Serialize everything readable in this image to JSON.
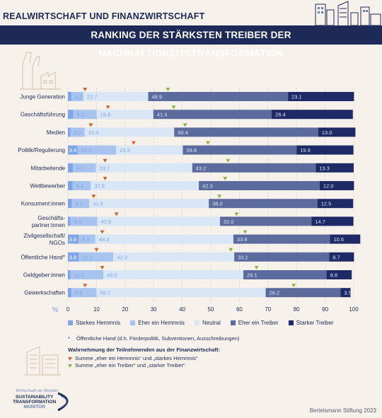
{
  "header": {
    "top_label": "REALWIRTSCHAFT UND FINANZWIRTSCHAFT",
    "title": "RANKING DER STÄRKSTEN TREIBER DER NACHHALTIGKEITSTRANSFORMATION"
  },
  "colors": {
    "navy": "#1d2a57",
    "background": "#f6f1ea",
    "marker_hemmnis": "#d4622a",
    "marker_treiber": "#8bb53c"
  },
  "chart_data": {
    "type": "bar",
    "orientation": "horizontal",
    "stacked": true,
    "x_unit": "%",
    "xlim": [
      0,
      100
    ],
    "x_ticks": [
      0,
      10,
      20,
      30,
      40,
      50,
      60,
      70,
      80,
      90,
      100
    ],
    "categories": [
      "Junge Generation",
      "Geschäftsführung",
      "Medien",
      "Politik/Regulierung",
      "Mitarbeitende",
      "Wettbewerber",
      "Konsument:innen",
      "Geschäfts-\npartner:innen",
      "Zivilgesellschaft/\nNGOs",
      "Öffentliche Hand*",
      "Geldgeber:innen",
      "Gewerkschaften"
    ],
    "series": [
      {
        "name": "Starkes Hemmnis",
        "color": "#7fa6e8",
        "values": [
          1.2,
          1.9,
          0.9,
          3.4,
          1.8,
          1.6,
          1.4,
          0.9,
          3.8,
          3.8,
          0.9,
          1.2
        ]
      },
      {
        "name": "Eher ein Hemmnis",
        "color": "#a8c4ee",
        "values": [
          4.2,
          8.2,
          5.0,
          13.5,
          8.0,
          6.4,
          6.1,
          9.4,
          5.8,
          12.1,
          11.5,
          8.8
        ]
      },
      {
        "name": "Neutral",
        "color": "#d8e6f6",
        "values": [
          22.7,
          19.8,
          31.3,
          23.3,
          33.7,
          37.8,
          41.8,
          42.9,
          48.3,
          42.3,
          49.0,
          59.2
        ]
      },
      {
        "name": "Eher ein Treiber",
        "color": "#5c6b9e",
        "values": [
          48.9,
          41.4,
          50.4,
          39.8,
          43.2,
          42.3,
          38.0,
          32.0,
          33.8,
          33.2,
          29.1,
          26.2
        ]
      },
      {
        "name": "Starker Treiber",
        "color": "#1d2a66",
        "values": [
          23.1,
          28.4,
          13.0,
          19.9,
          13.3,
          12.0,
          12.5,
          14.7,
          10.6,
          8.7,
          8.8,
          3.5
        ]
      }
    ],
    "value_labels": [
      [
        "",
        "4.2",
        "22.7",
        "48.9",
        "23.1"
      ],
      [
        "",
        "8.2",
        "19.8",
        "41.4",
        "28.4"
      ],
      [
        "",
        "5.0",
        "31.3",
        "50.4",
        "13.0"
      ],
      [
        "3.4",
        "13.5",
        "23.3",
        "39.8",
        "19.9"
      ],
      [
        "",
        "8.0",
        "33.7",
        "43.2",
        "13.3"
      ],
      [
        "",
        "6.4",
        "37.8",
        "42.3",
        "12.0"
      ],
      [
        "",
        "6.1",
        "41.8",
        "38.0",
        "12.5"
      ],
      [
        "",
        "9.4",
        "42.9",
        "32.0",
        "14.7"
      ],
      [
        "3.8",
        "5.8",
        "48.3",
        "33.8",
        "10.6"
      ],
      [
        "3.8",
        "12.1",
        "42.3",
        "33.2",
        "8.7"
      ],
      [
        "",
        "11.5",
        "49.0",
        "29.1",
        "8.8"
      ],
      [
        "",
        "8.8",
        "59.2",
        "26.2",
        "3.5"
      ]
    ],
    "markers_hemmnis": [
      6,
      14,
      8,
      23,
      13,
      13,
      9,
      17,
      12,
      10,
      12,
      6
    ],
    "markers_treiber": [
      35,
      37,
      41,
      49,
      56,
      55,
      53,
      59,
      62,
      57,
      66,
      79
    ]
  },
  "legend": {
    "items": [
      "Starkes Hemmnis",
      "Eher ein Hemmnis",
      "Neutral",
      "Eher ein Treiber",
      "Starker Treiber"
    ]
  },
  "footnote": {
    "star": "*",
    "text": "Öffentliche Hand (d.h. Förderpolitik, Subventionen, Ausschreibungen)"
  },
  "perception": {
    "title": "Wahrnehmung der Teilnehmenden aus der Finanzwirtschaft:",
    "hemmnis": "Summe „eher ein Hemmnis“ und „starkes Hemmnis“",
    "treiber": "Summe „eher ein Treiber“ und „starker Treiber“"
  },
  "logo": {
    "script": "Wirtschaft im Wandel",
    "line1": "SUSTAINABILITY",
    "line2": "TRANSFORMATION",
    "line3": "MONITOR"
  },
  "source": "Bertelsmann Stiftung 2023"
}
